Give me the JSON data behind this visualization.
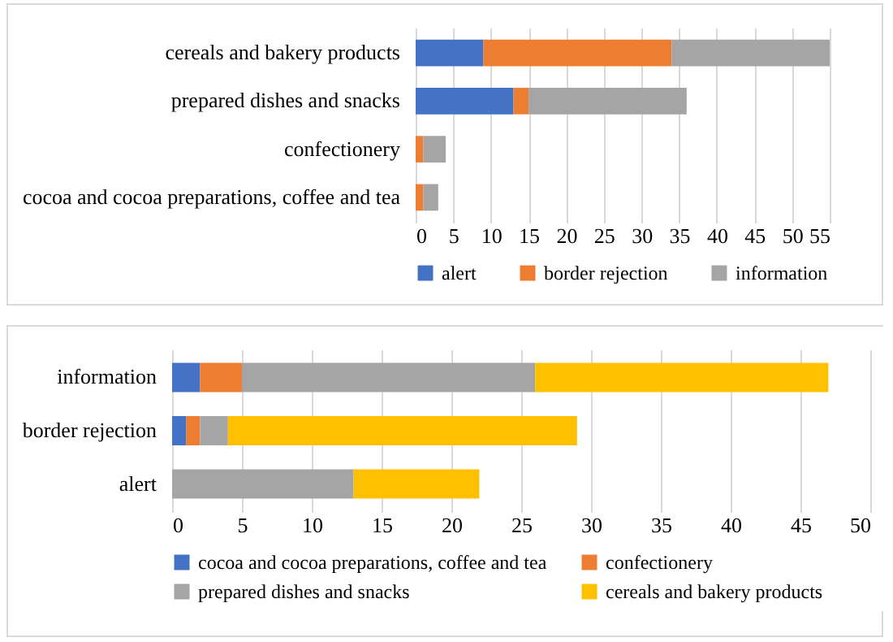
{
  "chart_data": [
    {
      "type": "bar",
      "orientation": "horizontal",
      "stacked": true,
      "categories": [
        "cereals and bakery products",
        "prepared dishes and snacks",
        "confectionery",
        "cocoa and cocoa preparations, coffee and tea"
      ],
      "series": [
        {
          "name": "alert",
          "color": "#4472c4",
          "values": [
            9,
            13,
            0,
            0
          ]
        },
        {
          "name": "border rejection",
          "color": "#ed7d31",
          "values": [
            25,
            2,
            1,
            1
          ]
        },
        {
          "name": "information",
          "color": "#a5a5a5",
          "values": [
            21,
            21,
            3,
            2
          ]
        }
      ],
      "xlim": [
        0,
        55
      ],
      "xticks": [
        0,
        5,
        10,
        15,
        20,
        25,
        30,
        35,
        40,
        45,
        50,
        55
      ],
      "grid": "x",
      "legend": "bottom"
    },
    {
      "type": "bar",
      "orientation": "horizontal",
      "stacked": true,
      "categories": [
        "information",
        "border rejection",
        "alert"
      ],
      "series": [
        {
          "name": "cocoa and cocoa preparations, coffee and tea",
          "color": "#4472c4",
          "values": [
            2,
            1,
            0
          ]
        },
        {
          "name": "confectionery",
          "color": "#ed7d31",
          "values": [
            3,
            1,
            0
          ]
        },
        {
          "name": "prepared dishes and snacks",
          "color": "#a5a5a5",
          "values": [
            21,
            2,
            13
          ]
        },
        {
          "name": "cereals and bakery products",
          "color": "#ffc000",
          "values": [
            21,
            25,
            9
          ]
        }
      ],
      "xlim": [
        0,
        50
      ],
      "xticks": [
        0,
        5,
        10,
        15,
        20,
        25,
        30,
        35,
        40,
        45,
        50
      ],
      "grid": "x",
      "legend": "bottom"
    }
  ]
}
